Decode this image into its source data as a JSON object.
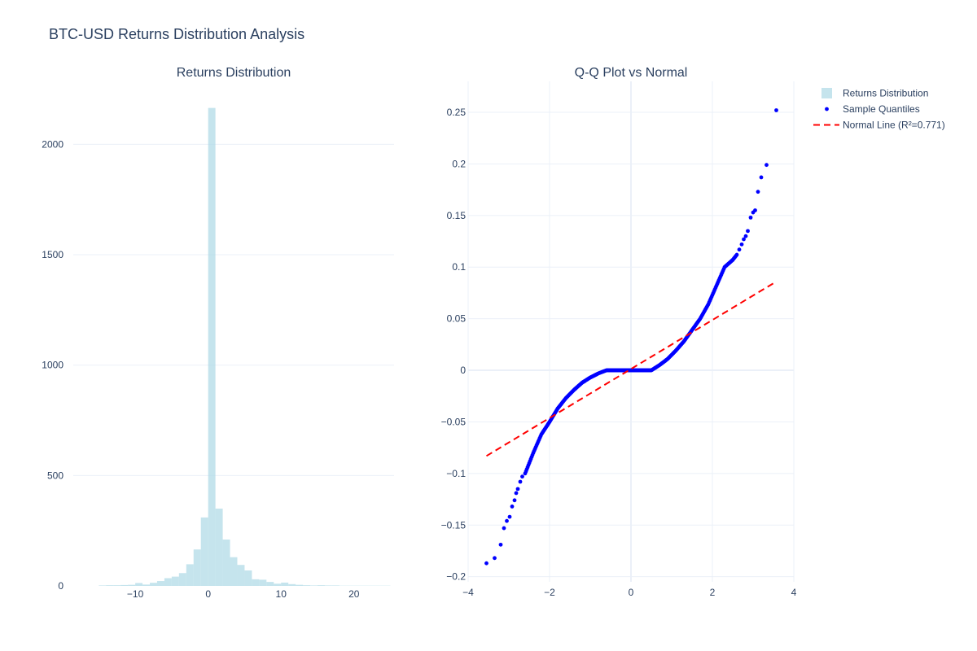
{
  "title": "BTC-USD Returns Distribution Analysis",
  "colors": {
    "histogram": "#add8e6",
    "points": "#0000ff",
    "normal_line": "#ff0000",
    "grid": "#ebf0f8",
    "zero_line": "#ebf0f8",
    "text": "#2a3f5f"
  },
  "legend": [
    {
      "name": "Returns Distribution",
      "symbol": "square",
      "color": "#add8e6"
    },
    {
      "name": "Sample Quantiles",
      "symbol": "dot",
      "color": "#0000ff"
    },
    {
      "name": "Normal Line (R²=0.771)",
      "symbol": "dash",
      "color": "#ff0000"
    }
  ],
  "chart_data": [
    {
      "type": "bar",
      "subtitle": "Returns Distribution",
      "series_name": "Returns Distribution",
      "xlim": [
        -18.5,
        25.5
      ],
      "ylim": [
        0,
        2230
      ],
      "xticks": [
        -10,
        0,
        10,
        20
      ],
      "xtick_labels": [
        "−10",
        "0",
        "10",
        "20"
      ],
      "yticks": [
        0,
        500,
        1000,
        1500,
        2000
      ],
      "ytick_labels": [
        "0",
        "500",
        "1000",
        "1500",
        "2000"
      ],
      "grid": true,
      "bin_width": 1,
      "bins": [
        {
          "x0": -15,
          "count": 2
        },
        {
          "x0": -14,
          "count": 3
        },
        {
          "x0": -13,
          "count": 3
        },
        {
          "x0": -12,
          "count": 4
        },
        {
          "x0": -11,
          "count": 5
        },
        {
          "x0": -10,
          "count": 13
        },
        {
          "x0": -9,
          "count": 6
        },
        {
          "x0": -8,
          "count": 14
        },
        {
          "x0": -7,
          "count": 22
        },
        {
          "x0": -6,
          "count": 35
        },
        {
          "x0": -5,
          "count": 42
        },
        {
          "x0": -4,
          "count": 58
        },
        {
          "x0": -3,
          "count": 98
        },
        {
          "x0": -2,
          "count": 165
        },
        {
          "x0": -1,
          "count": 310
        },
        {
          "x0": 0,
          "count": 2165
        },
        {
          "x0": 1,
          "count": 350
        },
        {
          "x0": 2,
          "count": 210
        },
        {
          "x0": 3,
          "count": 130
        },
        {
          "x0": 4,
          "count": 95
        },
        {
          "x0": 5,
          "count": 70
        },
        {
          "x0": 6,
          "count": 30
        },
        {
          "x0": 7,
          "count": 28
        },
        {
          "x0": 8,
          "count": 18
        },
        {
          "x0": 9,
          "count": 10
        },
        {
          "x0": 10,
          "count": 15
        },
        {
          "x0": 11,
          "count": 8
        },
        {
          "x0": 12,
          "count": 5
        },
        {
          "x0": 13,
          "count": 3
        },
        {
          "x0": 14,
          "count": 2
        },
        {
          "x0": 15,
          "count": 3
        },
        {
          "x0": 16,
          "count": 2
        },
        {
          "x0": 17,
          "count": 2
        },
        {
          "x0": 18,
          "count": 1
        },
        {
          "x0": 19,
          "count": 1
        },
        {
          "x0": 20,
          "count": 1
        },
        {
          "x0": 21,
          "count": 1
        },
        {
          "x0": 22,
          "count": 1
        },
        {
          "x0": 23,
          "count": 1
        },
        {
          "x0": 24,
          "count": 1
        }
      ]
    },
    {
      "type": "scatter",
      "subtitle": "Q-Q Plot vs Normal",
      "xlim": [
        -4,
        4
      ],
      "ylim": [
        -0.205,
        0.28
      ],
      "xticks": [
        -4,
        -2,
        0,
        2,
        4
      ],
      "xtick_labels": [
        "−4",
        "−2",
        "0",
        "2",
        "4"
      ],
      "yticks": [
        -0.2,
        -0.15,
        -0.1,
        -0.05,
        0,
        0.05,
        0.1,
        0.15,
        0.2,
        0.25
      ],
      "ytick_labels": [
        "−0.2",
        "−0.15",
        "−0.1",
        "−0.05",
        "0",
        "0.05",
        "0.1",
        "0.15",
        "0.2",
        "0.25"
      ],
      "grid": true,
      "series": [
        {
          "name": "Sample Quantiles",
          "mode": "markers",
          "curve": [
            [
              -2.6,
              -0.1
            ],
            [
              -2.4,
              -0.08
            ],
            [
              -2.2,
              -0.062
            ],
            [
              -2.0,
              -0.05
            ],
            [
              -1.8,
              -0.037
            ],
            [
              -1.6,
              -0.027
            ],
            [
              -1.4,
              -0.019
            ],
            [
              -1.2,
              -0.012
            ],
            [
              -1.0,
              -0.007
            ],
            [
              -0.8,
              -0.003
            ],
            [
              -0.6,
              0
            ],
            [
              0.5,
              0
            ],
            [
              0.7,
              0.005
            ],
            [
              0.9,
              0.011
            ],
            [
              1.1,
              0.019
            ],
            [
              1.3,
              0.028
            ],
            [
              1.5,
              0.039
            ],
            [
              1.7,
              0.05
            ],
            [
              1.9,
              0.064
            ],
            [
              2.1,
              0.082
            ],
            [
              2.3,
              0.1
            ],
            [
              2.5,
              0.107
            ],
            [
              2.6,
              0.112
            ]
          ],
          "tail_points": [
            [
              -3.55,
              -0.187
            ],
            [
              -3.35,
              -0.182
            ],
            [
              -3.2,
              -0.169
            ],
            [
              -3.12,
              -0.153
            ],
            [
              -3.05,
              -0.146
            ],
            [
              -2.98,
              -0.142
            ],
            [
              -2.92,
              -0.132
            ],
            [
              -2.86,
              -0.126
            ],
            [
              -2.82,
              -0.119
            ],
            [
              -2.78,
              -0.115
            ],
            [
              -2.72,
              -0.108
            ],
            [
              -2.67,
              -0.103
            ],
            [
              2.66,
              0.117
            ],
            [
              2.72,
              0.122
            ],
            [
              2.77,
              0.127
            ],
            [
              2.82,
              0.13
            ],
            [
              2.87,
              0.135
            ],
            [
              2.94,
              0.148
            ],
            [
              3.0,
              0.153
            ],
            [
              3.05,
              0.155
            ],
            [
              3.12,
              0.173
            ],
            [
              3.2,
              0.187
            ],
            [
              3.33,
              0.199
            ],
            [
              3.57,
              0.252
            ]
          ]
        },
        {
          "name": "Normal Line (R²=0.771)",
          "mode": "lines",
          "style": "dash",
          "points": [
            [
              -3.55,
              -0.083
            ],
            [
              3.57,
              0.086
            ]
          ]
        }
      ]
    }
  ]
}
